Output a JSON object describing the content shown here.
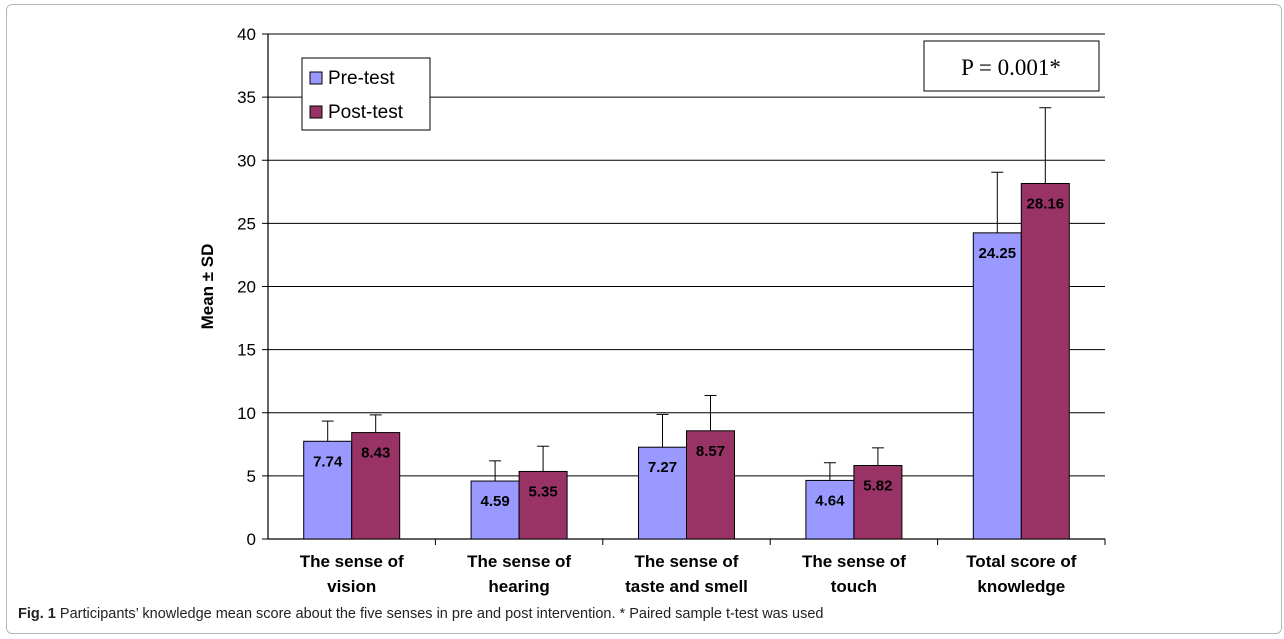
{
  "chart_data": {
    "type": "bar",
    "categories": [
      [
        "The sense of",
        "vision"
      ],
      [
        "The sense of",
        "hearing"
      ],
      [
        "The sense of",
        "taste and smell"
      ],
      [
        "The sense of",
        "touch"
      ],
      [
        "Total score of",
        "knowledge"
      ]
    ],
    "series": [
      {
        "name": "Pre-test",
        "values": [
          7.74,
          4.59,
          7.27,
          4.64,
          24.25
        ],
        "sd": [
          1.6,
          1.6,
          2.6,
          1.4,
          4.8
        ],
        "color": "#9999ff"
      },
      {
        "name": "Post-test",
        "values": [
          8.43,
          5.35,
          8.57,
          5.82,
          28.16
        ],
        "sd": [
          1.4,
          2.0,
          2.8,
          1.4,
          6.0
        ],
        "color": "#993366"
      }
    ],
    "data_labels": [
      "7.74",
      "8.43",
      "4.59",
      "5.35",
      "7.27",
      "8.57",
      "4.64",
      "5.82",
      "24.25",
      "28.16"
    ],
    "ylabel": "Mean ± SD",
    "ylim": [
      0,
      40
    ],
    "yticks": [
      0,
      5,
      10,
      15,
      20,
      25,
      30,
      35,
      40
    ],
    "grid": true,
    "legend_position": "top-left",
    "annotation": "P = 0.001*"
  },
  "caption": {
    "label": "Fig. 1",
    "text": "Participants’ knowledge mean score about the five senses in pre and post intervention. * Paired sample t-test was used"
  }
}
